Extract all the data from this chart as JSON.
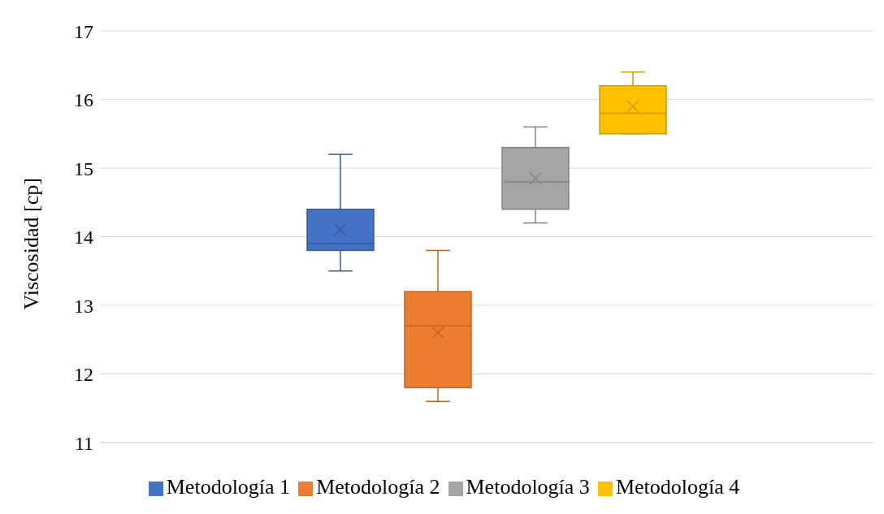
{
  "chart_data": {
    "type": "box",
    "ylabel": "Viscosidad [cp]",
    "categories": [
      null
    ],
    "ylim": [
      11,
      17
    ],
    "yticks": [
      11,
      12,
      13,
      14,
      15,
      16,
      17
    ],
    "grid": "y",
    "legend": "bottom",
    "marker": "cross",
    "series": [
      {
        "name": "Metodología 1",
        "color": "#4472c4",
        "boxes": [
          {
            "low": 13.5,
            "q1": 13.8,
            "median": 13.9,
            "q3": 14.4,
            "high": 15.2,
            "mean": 14.1
          }
        ]
      },
      {
        "name": "Metodología 2",
        "color": "#ed7d31",
        "boxes": [
          {
            "low": 11.6,
            "q1": 11.8,
            "median": 12.7,
            "q3": 13.2,
            "high": 13.8,
            "mean": 12.6
          }
        ]
      },
      {
        "name": "Metodología 3",
        "color": "#a5a5a5",
        "boxes": [
          {
            "low": 14.2,
            "q1": 14.4,
            "median": 14.8,
            "q3": 15.3,
            "high": 15.6,
            "mean": 14.85
          }
        ]
      },
      {
        "name": "Metodología 4",
        "color": "#ffc000",
        "boxes": [
          {
            "low": 15.5,
            "q1": 15.5,
            "median": 15.8,
            "q3": 16.2,
            "high": 16.4,
            "mean": 15.9
          }
        ]
      }
    ]
  }
}
